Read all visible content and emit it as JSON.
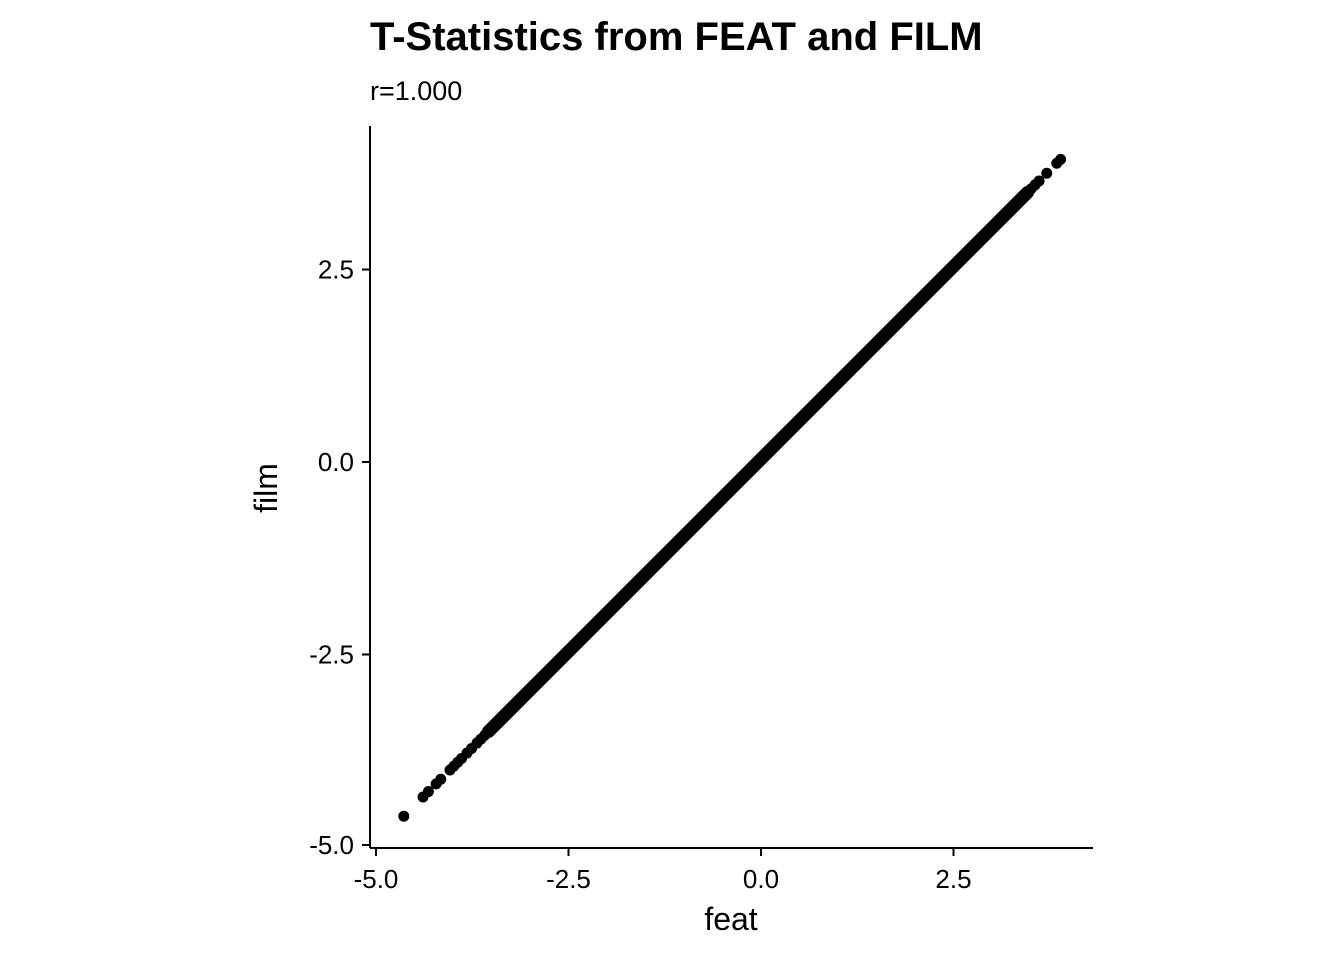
{
  "chart_data": {
    "type": "scatter",
    "title": "T-Statistics from FEAT and FILM",
    "subtitle": "r=1.000",
    "xlabel": "feat",
    "ylabel": "film",
    "xlim": [
      -5.0,
      4.3
    ],
    "ylim": [
      -5.0,
      4.4
    ],
    "x_ticks": [
      -5.0,
      -2.5,
      0.0,
      2.5
    ],
    "x_tick_labels": [
      "-5.0",
      "-2.5",
      "0.0",
      "2.5"
    ],
    "y_ticks": [
      -5.0,
      -2.5,
      0.0,
      2.5
    ],
    "y_tick_labels": [
      "-5.0",
      "-2.5",
      "0.0",
      "2.5"
    ],
    "grid": false,
    "legend": "none",
    "color": "#000000",
    "points": [
      {
        "x": -4.6,
        "y": -4.6
      },
      {
        "x": -4.35,
        "y": -4.35
      },
      {
        "x": -4.28,
        "y": -4.28
      },
      {
        "x": -4.18,
        "y": -4.18
      },
      {
        "x": -4.12,
        "y": -4.12
      },
      {
        "x": -4.0,
        "y": -4.0
      },
      {
        "x": -3.95,
        "y": -3.95
      },
      {
        "x": -3.9,
        "y": -3.9
      },
      {
        "x": -3.85,
        "y": -3.85
      },
      {
        "x": -3.78,
        "y": -3.78
      },
      {
        "x": -3.72,
        "y": -3.72
      },
      {
        "x": -3.65,
        "y": -3.65
      },
      {
        "x": -3.6,
        "y": -3.6
      },
      {
        "x": -3.55,
        "y": -3.55
      },
      {
        "x": -3.5,
        "y": -3.5
      },
      {
        "x": 3.5,
        "y": 3.5
      },
      {
        "x": 3.55,
        "y": 3.55
      },
      {
        "x": 3.6,
        "y": 3.6
      },
      {
        "x": 3.65,
        "y": 3.65
      },
      {
        "x": 3.75,
        "y": 3.75
      },
      {
        "x": 3.88,
        "y": 3.88
      },
      {
        "x": 3.93,
        "y": 3.93
      }
    ],
    "dense_segment": {
      "x_from": -3.5,
      "x_to": 3.5,
      "slope": 1.0,
      "intercept": 0.0
    }
  }
}
